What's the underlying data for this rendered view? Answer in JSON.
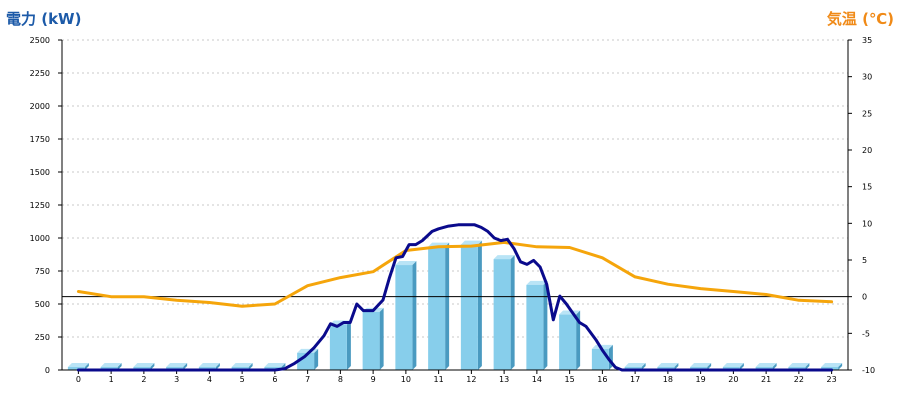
{
  "colors": {
    "left_title": "#1c5aa8",
    "right_title": "#f08a17",
    "bar_front": "#87ceeb",
    "bar_top": "#b9e4f6",
    "bar_side": "#4a9ac0",
    "power_line": "#0a0a8c",
    "temp_line": "#f5a50b",
    "baseline": "#000000",
    "grid": "#c8c8c8",
    "axis": "#000000",
    "tick_text": "#000000"
  },
  "chart_data": {
    "type": "bar",
    "title_left": "電力 (kW)",
    "title_right": "気温 (℃)",
    "categories": [
      "0",
      "1",
      "2",
      "3",
      "4",
      "5",
      "6",
      "7",
      "8",
      "9",
      "10",
      "11",
      "12",
      "13",
      "14",
      "15",
      "16",
      "17",
      "18",
      "19",
      "20",
      "21",
      "22",
      "23"
    ],
    "y_left": {
      "range": [
        0,
        2500
      ],
      "ticks": [
        0,
        250,
        500,
        750,
        1000,
        1250,
        1500,
        1750,
        2000,
        2250,
        2500
      ]
    },
    "y_right": {
      "range": [
        -10,
        35
      ],
      "ticks": [
        -10,
        -5,
        0,
        5,
        10,
        15,
        20,
        25,
        30,
        35
      ]
    },
    "grid": true,
    "reference_line_temp": 0,
    "bars": {
      "axis": "left",
      "values": [
        0,
        0,
        0,
        0,
        0,
        0,
        0,
        130,
        345,
        440,
        795,
        935,
        950,
        840,
        645,
        420,
        160,
        0,
        0,
        0,
        0,
        0,
        0,
        0
      ]
    },
    "power_line": {
      "axis": "left",
      "x": [
        0,
        1,
        2,
        3,
        4,
        5,
        6,
        6.3,
        6.6,
        6.9,
        7.2,
        7.5,
        7.7,
        7.9,
        8.1,
        8.3,
        8.5,
        8.7,
        9.0,
        9.3,
        9.5,
        9.7,
        9.9,
        10.1,
        10.3,
        10.5,
        10.8,
        11.0,
        11.3,
        11.6,
        11.9,
        12.1,
        12.3,
        12.5,
        12.7,
        12.9,
        13.1,
        13.3,
        13.5,
        13.7,
        13.9,
        14.1,
        14.3,
        14.5,
        14.7,
        14.9,
        15.1,
        15.3,
        15.5,
        15.8,
        16.0,
        16.2,
        16.4,
        16.6,
        17,
        18,
        19,
        20,
        21,
        22,
        23
      ],
      "y": [
        0,
        0,
        0,
        0,
        0,
        0,
        0,
        10,
        50,
        100,
        170,
        260,
        350,
        330,
        360,
        360,
        500,
        450,
        450,
        530,
        700,
        850,
        860,
        950,
        950,
        980,
        1050,
        1070,
        1090,
        1100,
        1100,
        1100,
        1080,
        1050,
        1000,
        980,
        990,
        920,
        820,
        800,
        830,
        780,
        650,
        380,
        560,
        500,
        430,
        360,
        330,
        230,
        150,
        80,
        20,
        0,
        0,
        0,
        0,
        0,
        0,
        0,
        0
      ]
    },
    "temperature_line": {
      "axis": "right",
      "x": [
        0,
        1,
        2,
        3,
        4,
        5,
        6,
        7,
        8,
        9,
        10,
        11,
        12,
        13,
        14,
        15,
        16,
        17,
        18,
        19,
        20,
        21,
        22,
        23
      ],
      "y": [
        0.7,
        0,
        0,
        -0.5,
        -0.8,
        -1.3,
        -1,
        1.5,
        2.6,
        3.4,
        6.3,
        6.8,
        6.9,
        7.4,
        6.8,
        6.7,
        5.3,
        2.7,
        1.7,
        1.1,
        0.7,
        0.3,
        -0.5,
        -0.7
      ]
    }
  }
}
